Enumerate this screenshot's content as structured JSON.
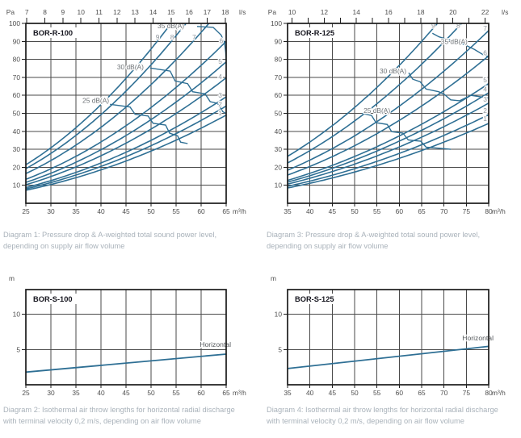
{
  "colors": {
    "curve_blue": "#2e6f94",
    "grid": "#4a4a4a",
    "frame": "#1b1b1b",
    "tick_text": "#4e4e4e",
    "db_label_text": "#6d7276",
    "curve_number_text": "#8f969c",
    "title_text": "#15151e",
    "caption_text": "#a9b2ba",
    "background": "#ffffff"
  },
  "chart_data": [
    {
      "id": "diagram-1",
      "type": "line",
      "variant": "pressure-sound",
      "title": "BOR-R-100",
      "xlabel": "m³/h",
      "x2label": "l/s",
      "ylabel": "Pa",
      "xlim": [
        25,
        65
      ],
      "ylim": [
        0,
        100
      ],
      "x_ticks": [
        25,
        30,
        35,
        40,
        45,
        50,
        55,
        60,
        65
      ],
      "y_ticks": [
        10,
        20,
        30,
        40,
        50,
        60,
        70,
        80,
        90,
        100
      ],
      "x2": {
        "tick_min": 7,
        "tick_max": 18,
        "tick_step": 1,
        "label_step": 1
      },
      "ls_to_m3h": 3.6,
      "fan_curves": [
        {
          "label": "1",
          "k": 0.0116,
          "label_xy": [
            63.8,
            48.8
          ]
        },
        {
          "label": "2",
          "k": 0.0128,
          "label_xy": [
            63.8,
            53.8
          ]
        },
        {
          "label": "3",
          "k": 0.014,
          "label_xy": [
            63.8,
            58.8
          ]
        },
        {
          "label": "4",
          "k": 0.0165,
          "label_xy": [
            63.8,
            69.0
          ]
        },
        {
          "label": "5",
          "k": 0.0186,
          "label_xy": [
            63.8,
            77.5
          ]
        },
        {
          "label": "6",
          "k": 0.0213,
          "label_xy": [
            64.0,
            89.0
          ]
        },
        {
          "label": "7",
          "k": 0.0264,
          "label_xy": [
            58.6,
            91.0
          ]
        },
        {
          "label": "8",
          "k": 0.0308,
          "label_xy": [
            54.2,
            91.0
          ]
        },
        {
          "label": "9",
          "k": 0.0343,
          "label_xy": [
            51.3,
            91.0
          ]
        }
      ],
      "db_contours": [
        {
          "label": "25 dB(A)",
          "label_xy": [
            36.3,
            55.8
          ],
          "points": [
            [
              41.8,
              55
            ],
            [
              45.8,
              53.5
            ],
            [
              46.8,
              49.5
            ],
            [
              49.4,
              48.5
            ],
            [
              50.4,
              44.5
            ],
            [
              52.9,
              43.5
            ],
            [
              53.7,
              39
            ],
            [
              55.3,
              37.5
            ],
            [
              55.9,
              34
            ],
            [
              57.3,
              33.2
            ]
          ]
        },
        {
          "label": "30 dB(A)",
          "label_xy": [
            43.2,
            74.5
          ],
          "points": [
            [
              49.8,
              75.2
            ],
            [
              53.8,
              73.5
            ],
            [
              54.8,
              68
            ],
            [
              57.3,
              66.5
            ],
            [
              58.3,
              62
            ],
            [
              60.8,
              60.8
            ],
            [
              61.8,
              56.5
            ],
            [
              63.3,
              55.5
            ],
            [
              64.3,
              51
            ],
            [
              65,
              49.8
            ]
          ]
        },
        {
          "label": "35 dB(A)",
          "label_xy": [
            51.3,
            97.2
          ],
          "points": [
            [
              59.2,
              98.3
            ],
            [
              62.4,
              97.8
            ],
            [
              64.0,
              93.5
            ],
            [
              64.7,
              89
            ],
            [
              64.9,
              84
            ],
            [
              65,
              79
            ]
          ]
        }
      ],
      "layout": {
        "plot": {
          "l": 32,
          "t": 29,
          "r": 280,
          "b": 252
        },
        "unit_gap": 6
      },
      "caption": [
        "Diagram 1: Pressure drop & A-weighted total sound power level,",
        "depending on supply air flow volume"
      ]
    },
    {
      "id": "diagram-3",
      "type": "line",
      "variant": "pressure-sound",
      "title": "BOR-R-125",
      "xlabel": "m³/h",
      "x2label": "l/s",
      "ylabel": "Pa",
      "xlim": [
        35,
        80
      ],
      "ylim": [
        0,
        100
      ],
      "x_ticks": [
        35,
        40,
        45,
        50,
        55,
        60,
        65,
        70,
        75,
        80
      ],
      "y_ticks": [
        10,
        20,
        30,
        40,
        50,
        60,
        70,
        80,
        90,
        100
      ],
      "x2": {
        "tick_min": 10,
        "tick_max": 22,
        "tick_step": 1,
        "label_step": 2
      },
      "ls_to_m3h": 3.6,
      "fan_curves": [
        {
          "label": "1",
          "k": 0.00694,
          "label_xy": [
            79.2,
            45.8
          ]
        },
        {
          "label": "2",
          "k": 0.0077,
          "label_xy": [
            79.2,
            50.2
          ]
        },
        {
          "label": "3",
          "k": 0.0087,
          "label_xy": [
            79.2,
            56.5
          ]
        },
        {
          "label": "4",
          "k": 0.0096,
          "label_xy": [
            79.2,
            62.2
          ]
        },
        {
          "label": "5",
          "k": 0.0104,
          "label_xy": [
            79.2,
            67.2
          ]
        },
        {
          "label": "6",
          "k": 0.0128,
          "label_xy": [
            79.2,
            82.3
          ]
        },
        {
          "label": "7",
          "k": 0.015,
          "label_xy": [
            79.2,
            96.0
          ]
        },
        {
          "label": "8",
          "k": 0.0183,
          "label_xy": [
            73.2,
            97.6
          ]
        },
        {
          "label": "9",
          "k": 0.0213,
          "label_xy": [
            67.6,
            97.6
          ]
        }
      ],
      "db_contours": [
        {
          "label": "25 dB(A)",
          "label_xy": [
            52.0,
            50.2
          ],
          "points": [
            [
              51.6,
              50
            ],
            [
              53.8,
              48.8
            ],
            [
              54.8,
              44.8
            ],
            [
              57.3,
              43.8
            ],
            [
              58.3,
              39.8
            ],
            [
              60.8,
              39
            ],
            [
              62,
              35.2
            ],
            [
              64.8,
              34.5
            ],
            [
              66,
              31.2
            ],
            [
              69,
              30.6
            ],
            [
              71.5,
              30
            ]
          ]
        },
        {
          "label": "30 dB(A)",
          "label_xy": [
            55.6,
            72.3
          ],
          "points": [
            [
              62.1,
              72.5
            ],
            [
              63,
              69
            ],
            [
              64.7,
              67.5
            ],
            [
              66,
              63.5
            ],
            [
              68.8,
              62
            ],
            [
              70.1,
              60.5
            ],
            [
              71.5,
              57.5
            ],
            [
              73.5,
              57
            ],
            [
              76,
              60
            ],
            [
              80,
              58.5
            ]
          ]
        },
        {
          "label": "35 dB(A)",
          "label_xy": [
            69.3,
            88.6
          ],
          "points": [
            [
              67.4,
              94.5
            ],
            [
              68.9,
              92.5
            ],
            [
              74.3,
              88.5
            ],
            [
              76.8,
              85.5
            ],
            [
              78.8,
              82.5
            ],
            [
              80,
              81.5
            ]
          ]
        }
      ],
      "layout": {
        "plot": {
          "l": 356,
          "t": 29,
          "r": 605,
          "b": 252
        },
        "unit_gap": 2
      },
      "caption": [
        "Diagram 3: Pressure drop & A-weighted total sound power level,",
        "depending on supply air flow volume"
      ]
    },
    {
      "id": "diagram-2",
      "type": "line",
      "variant": "throw-length",
      "title": "BOR-S-100",
      "xlabel": "m³/h",
      "ylabel": "m",
      "xlim": [
        25,
        65
      ],
      "ylim": [
        0,
        13.5
      ],
      "x_ticks": [
        25,
        30,
        35,
        40,
        45,
        50,
        55,
        60,
        65
      ],
      "y_ticks": [
        5,
        10
      ],
      "series": [
        {
          "name": "Horizontal",
          "points": [
            [
              25,
              1.8
            ],
            [
              65,
              4.35
            ]
          ],
          "label_xy": [
            65,
            5.35
          ]
        }
      ],
      "layout": {
        "plot": {
          "l": 32,
          "t": 359,
          "r": 280,
          "b": 477
        },
        "unit_gap": 6
      },
      "caption": [
        "Diagram 2: Isothermal air throw lengths for horizontal radial discharge",
        "with terminal velocity 0,2 m/s, depending on air flow volume"
      ]
    },
    {
      "id": "diagram-4",
      "type": "line",
      "variant": "throw-length",
      "title": "BOR-S-125",
      "xlabel": "m³/h",
      "ylabel": "m",
      "xlim": [
        35,
        80
      ],
      "ylim": [
        0,
        13.5
      ],
      "x_ticks": [
        35,
        40,
        45,
        50,
        55,
        60,
        65,
        70,
        75,
        80
      ],
      "y_ticks": [
        5,
        10
      ],
      "series": [
        {
          "name": "Horizontal",
          "points": [
            [
              35,
              2.3
            ],
            [
              80,
              5.45
            ]
          ],
          "label_xy": [
            80,
            6.3
          ]
        }
      ],
      "layout": {
        "plot": {
          "l": 356,
          "t": 359,
          "r": 605,
          "b": 477
        },
        "unit_gap": 2
      },
      "caption": [
        "Diagram 4: Isothermal air throw lengths for horizontal radial discharge",
        "with terminal velocity 0,2 m/s, depending on air flow volume"
      ]
    }
  ]
}
